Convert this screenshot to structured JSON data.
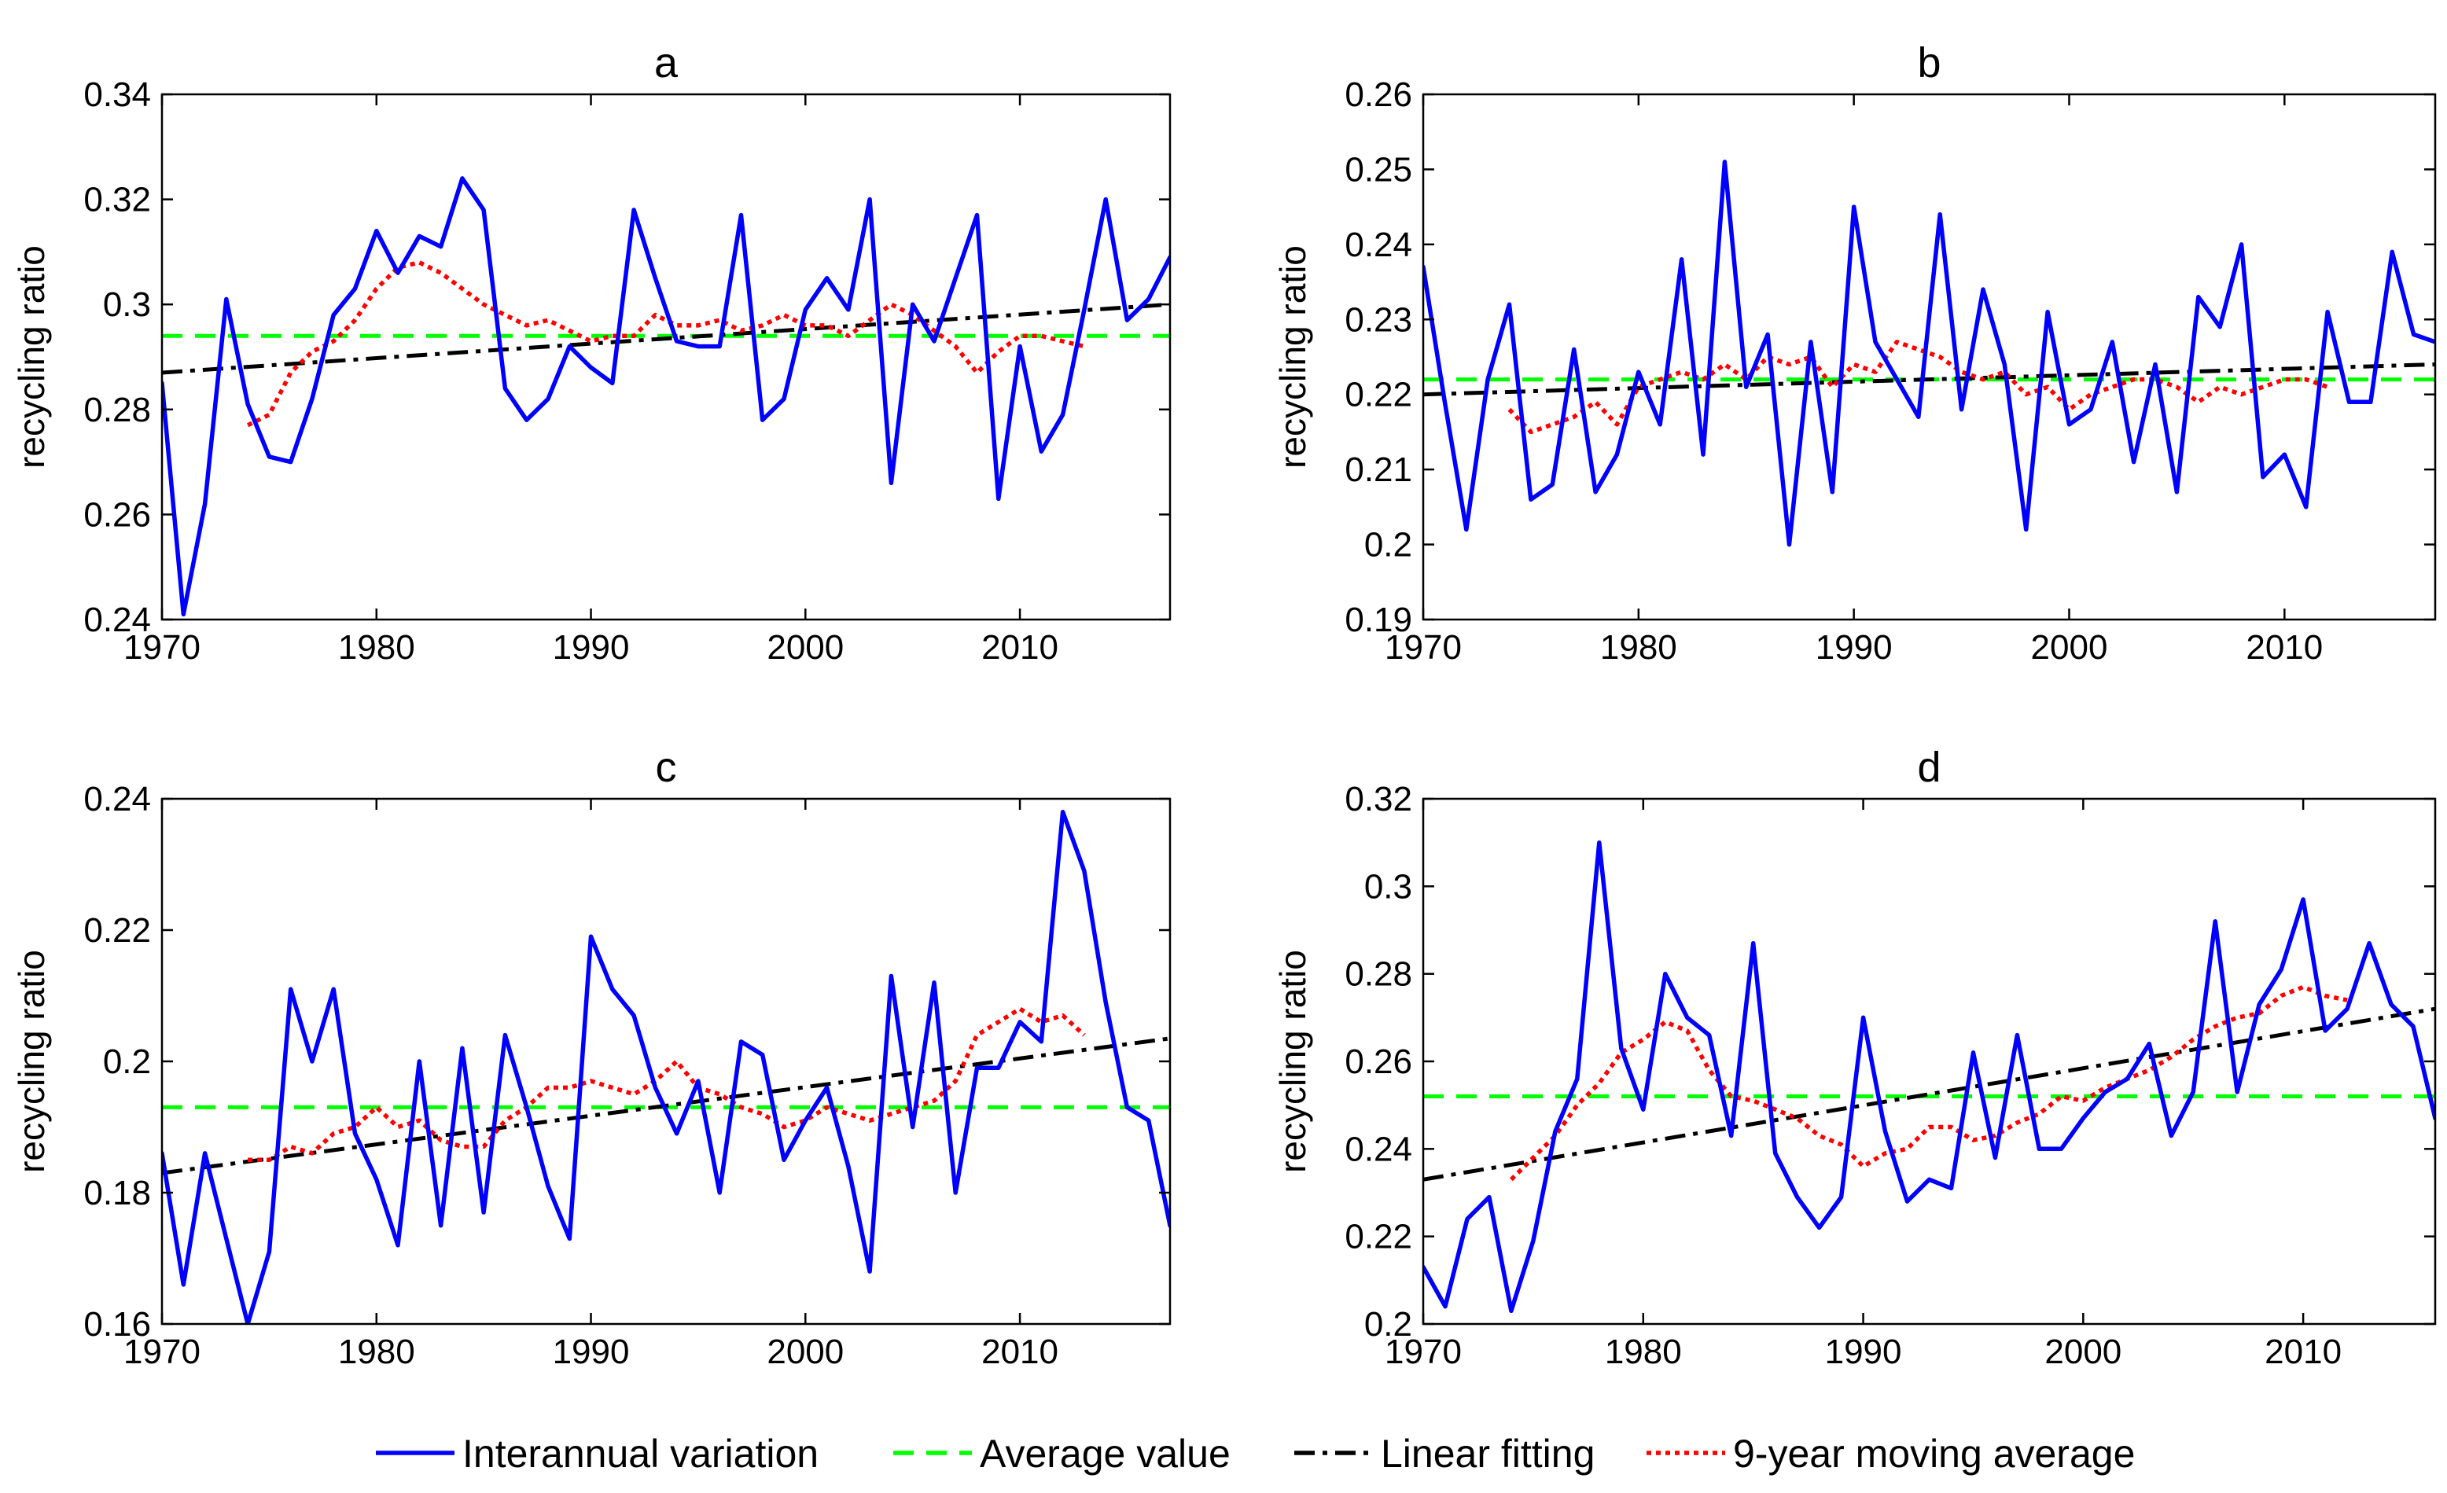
{
  "colors": {
    "interannual": "#0000ff",
    "average": "#00ff00",
    "linear": "#000000",
    "moving": "#ff0000",
    "axis": "#000000",
    "background": "#ffffff"
  },
  "legend": {
    "items": [
      {
        "key": "interannual",
        "label": "Interannual variation"
      },
      {
        "key": "average",
        "label": "Average value"
      },
      {
        "key": "linear",
        "label": "Linear fitting"
      },
      {
        "key": "moving",
        "label": "9-year moving average"
      }
    ]
  },
  "chart_data": [
    {
      "type": "line",
      "title": "a",
      "xlabel": "",
      "ylabel": "recycling ratio",
      "xlim": [
        1970,
        2017
      ],
      "ylim": [
        0.24,
        0.34
      ],
      "xticks": [
        1970,
        1980,
        1990,
        2000,
        2010
      ],
      "xtick_labels": [
        "1970",
        "1980",
        "1990",
        "2000",
        "2010"
      ],
      "yticks": [
        0.24,
        0.26,
        0.28,
        0.3,
        0.32,
        0.34
      ],
      "ytick_labels": [
        "0.24",
        "0.26",
        "0.28",
        "0.3",
        "0.32",
        "0.34"
      ],
      "grid": false,
      "series": [
        {
          "name": "Interannual variation",
          "key": "interannual",
          "x_start": 1970,
          "values": [
            0.285,
            0.241,
            0.262,
            0.301,
            0.281,
            0.271,
            0.27,
            0.282,
            0.298,
            0.303,
            0.314,
            0.306,
            0.313,
            0.311,
            0.324,
            0.318,
            0.284,
            0.278,
            0.282,
            0.292,
            0.288,
            0.285,
            0.318,
            0.305,
            0.293,
            0.292,
            0.292,
            0.317,
            0.278,
            0.282,
            0.299,
            0.305,
            0.299,
            0.32,
            0.266,
            0.3,
            0.293,
            0.305,
            0.317,
            0.263,
            0.292,
            0.272,
            0.279,
            0.299,
            0.32,
            0.297,
            0.301,
            0.309
          ]
        },
        {
          "name": "Average value",
          "key": "average",
          "x": [
            1970,
            2017
          ],
          "values": [
            0.294,
            0.294
          ]
        },
        {
          "name": "Linear fitting",
          "key": "linear",
          "x": [
            1970,
            2017
          ],
          "values": [
            0.287,
            0.3
          ]
        },
        {
          "name": "9-year moving average",
          "key": "moving",
          "x_start": 1974,
          "values": [
            0.277,
            0.279,
            0.287,
            0.291,
            0.293,
            0.297,
            0.303,
            0.307,
            0.308,
            0.306,
            0.303,
            0.3,
            0.298,
            0.296,
            0.297,
            0.295,
            0.293,
            0.294,
            0.294,
            0.298,
            0.296,
            0.296,
            0.297,
            0.295,
            0.296,
            0.298,
            0.296,
            0.296,
            0.294,
            0.297,
            0.3,
            0.298,
            0.295,
            0.292,
            0.287,
            0.291,
            0.294,
            0.294,
            0.293,
            0.292
          ]
        }
      ]
    },
    {
      "type": "line",
      "title": "b",
      "xlabel": "",
      "ylabel": "recycling ratio",
      "xlim": [
        1970,
        2017
      ],
      "ylim": [
        0.19,
        0.26
      ],
      "xticks": [
        1970,
        1980,
        1990,
        2000,
        2010
      ],
      "xtick_labels": [
        "1970",
        "1980",
        "1990",
        "2000",
        "2010"
      ],
      "yticks": [
        0.19,
        0.2,
        0.21,
        0.22,
        0.23,
        0.24,
        0.25,
        0.26
      ],
      "ytick_labels": [
        "0.19",
        "0.2",
        "0.21",
        "0.22",
        "0.23",
        "0.24",
        "0.25",
        "0.26"
      ],
      "grid": false,
      "series": [
        {
          "name": "Interannual variation",
          "key": "interannual",
          "x_start": 1970,
          "values": [
            0.237,
            0.219,
            0.202,
            0.222,
            0.232,
            0.206,
            0.208,
            0.226,
            0.207,
            0.212,
            0.223,
            0.216,
            0.238,
            0.212,
            0.251,
            0.221,
            0.228,
            0.2,
            0.227,
            0.207,
            0.245,
            0.227,
            0.222,
            0.217,
            0.244,
            0.218,
            0.234,
            0.224,
            0.202,
            0.231,
            0.216,
            0.218,
            0.227,
            0.211,
            0.224,
            0.207,
            0.233,
            0.229,
            0.24,
            0.209,
            0.212,
            0.205,
            0.231,
            0.219,
            0.219,
            0.239,
            0.228,
            0.227
          ]
        },
        {
          "name": "Average value",
          "key": "average",
          "x": [
            1970,
            2017
          ],
          "values": [
            0.222,
            0.222
          ]
        },
        {
          "name": "Linear fitting",
          "key": "linear",
          "x": [
            1970,
            2017
          ],
          "values": [
            0.22,
            0.224
          ]
        },
        {
          "name": "9-year moving average",
          "key": "moving",
          "x_start": 1974,
          "values": [
            0.218,
            0.215,
            0.216,
            0.217,
            0.219,
            0.216,
            0.221,
            0.222,
            0.223,
            0.222,
            0.224,
            0.222,
            0.225,
            0.224,
            0.225,
            0.221,
            0.224,
            0.223,
            0.227,
            0.226,
            0.225,
            0.223,
            0.222,
            0.223,
            0.22,
            0.221,
            0.218,
            0.22,
            0.221,
            0.222,
            0.222,
            0.221,
            0.219,
            0.221,
            0.22,
            0.221,
            0.222,
            0.222,
            0.221
          ]
        }
      ]
    },
    {
      "type": "line",
      "title": "c",
      "xlabel": "",
      "ylabel": "recycling ratio",
      "xlim": [
        1970,
        2017
      ],
      "ylim": [
        0.16,
        0.24
      ],
      "xticks": [
        1970,
        1980,
        1990,
        2000,
        2010
      ],
      "xtick_labels": [
        "1970",
        "1980",
        "1990",
        "2000",
        "2010"
      ],
      "yticks": [
        0.16,
        0.18,
        0.2,
        0.22,
        0.24
      ],
      "ytick_labels": [
        "0.16",
        "0.18",
        "0.2",
        "0.22",
        "0.24"
      ],
      "grid": false,
      "series": [
        {
          "name": "Interannual variation",
          "key": "interannual",
          "x_start": 1970,
          "values": [
            0.186,
            0.166,
            0.186,
            0.173,
            0.16,
            0.171,
            0.211,
            0.2,
            0.211,
            0.189,
            0.182,
            0.172,
            0.2,
            0.175,
            0.202,
            0.177,
            0.204,
            0.193,
            0.181,
            0.173,
            0.219,
            0.211,
            0.207,
            0.196,
            0.189,
            0.197,
            0.18,
            0.203,
            0.201,
            0.185,
            0.191,
            0.196,
            0.184,
            0.168,
            0.213,
            0.19,
            0.212,
            0.18,
            0.199,
            0.199,
            0.206,
            0.203,
            0.238,
            0.229,
            0.209,
            0.193,
            0.191,
            0.175
          ]
        },
        {
          "name": "Average value",
          "key": "average",
          "x": [
            1970,
            2017
          ],
          "values": [
            0.193,
            0.193
          ]
        },
        {
          "name": "Linear fitting",
          "key": "linear",
          "x": [
            1970,
            2017
          ],
          "values": [
            0.183,
            0.2035
          ]
        },
        {
          "name": "9-year moving average",
          "key": "moving",
          "x_start": 1974,
          "values": [
            0.185,
            0.185,
            0.187,
            0.186,
            0.189,
            0.19,
            0.193,
            0.19,
            0.191,
            0.188,
            0.187,
            0.187,
            0.191,
            0.193,
            0.196,
            0.196,
            0.197,
            0.196,
            0.195,
            0.197,
            0.2,
            0.196,
            0.195,
            0.193,
            0.192,
            0.19,
            0.191,
            0.193,
            0.192,
            0.191,
            0.192,
            0.193,
            0.194,
            0.197,
            0.204,
            0.206,
            0.208,
            0.206,
            0.207,
            0.204
          ]
        }
      ]
    },
    {
      "type": "line",
      "title": "d",
      "xlabel": "",
      "ylabel": "recycling ratio",
      "xlim": [
        1970,
        2016
      ],
      "ylim": [
        0.2,
        0.32
      ],
      "xticks": [
        1970,
        1980,
        1990,
        2000,
        2010
      ],
      "xtick_labels": [
        "1970",
        "1980",
        "1990",
        "2000",
        "2010"
      ],
      "yticks": [
        0.2,
        0.22,
        0.24,
        0.26,
        0.28,
        0.3,
        0.32
      ],
      "ytick_labels": [
        "0.2",
        "0.22",
        "0.24",
        "0.26",
        "0.28",
        "0.3",
        "0.32"
      ],
      "grid": false,
      "series": [
        {
          "name": "Interannual variation",
          "key": "interannual",
          "x_start": 1970,
          "values": [
            0.213,
            0.204,
            0.224,
            0.229,
            0.203,
            0.219,
            0.244,
            0.256,
            0.31,
            0.263,
            0.249,
            0.28,
            0.27,
            0.266,
            0.243,
            0.287,
            0.239,
            0.229,
            0.222,
            0.229,
            0.27,
            0.244,
            0.228,
            0.233,
            0.231,
            0.262,
            0.238,
            0.266,
            0.24,
            0.24,
            0.247,
            0.253,
            0.256,
            0.264,
            0.243,
            0.253,
            0.292,
            0.253,
            0.273,
            0.281,
            0.297,
            0.267,
            0.272,
            0.287,
            0.273,
            0.268,
            0.247
          ]
        },
        {
          "name": "Average value",
          "key": "average",
          "x": [
            1970,
            2016
          ],
          "values": [
            0.252,
            0.252
          ]
        },
        {
          "name": "Linear fitting",
          "key": "linear",
          "x": [
            1970,
            2016
          ],
          "values": [
            0.233,
            0.272
          ]
        },
        {
          "name": "9-year moving average",
          "key": "moving",
          "x_start": 1974,
          "values": [
            0.233,
            0.238,
            0.243,
            0.25,
            0.255,
            0.262,
            0.265,
            0.269,
            0.267,
            0.258,
            0.252,
            0.251,
            0.249,
            0.247,
            0.243,
            0.241,
            0.236,
            0.239,
            0.24,
            0.245,
            0.245,
            0.242,
            0.243,
            0.246,
            0.248,
            0.252,
            0.251,
            0.254,
            0.256,
            0.258,
            0.261,
            0.265,
            0.268,
            0.27,
            0.271,
            0.275,
            0.277,
            0.275,
            0.274
          ]
        }
      ]
    }
  ]
}
